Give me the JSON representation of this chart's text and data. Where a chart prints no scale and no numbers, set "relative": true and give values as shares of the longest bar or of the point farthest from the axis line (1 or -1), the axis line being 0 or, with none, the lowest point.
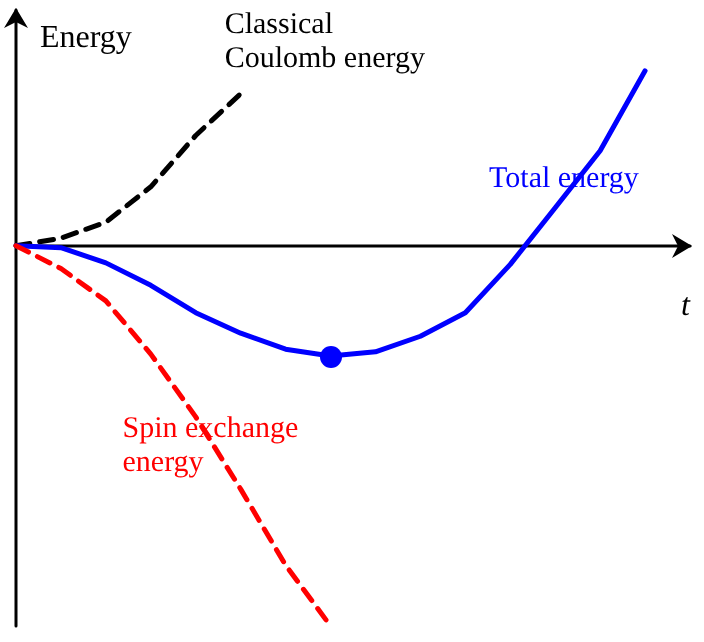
{
  "chart_data": {
    "type": "line",
    "relative": true,
    "ylabel": "Energy",
    "xlabel": "t",
    "marker": "none",
    "categories": [
      null,
      null,
      null,
      null,
      null,
      null,
      null,
      null,
      null,
      null,
      null,
      null,
      null,
      null,
      null,
      null
    ],
    "series": [
      {
        "name": "Classical Coulomb energy",
        "color": "#000000",
        "line_style": "dashed",
        "values": [
          0,
          0.02,
          0.062,
          0.155,
          0.29,
          0.4,
          null,
          null,
          null,
          null,
          null,
          null,
          null,
          null,
          null,
          null
        ]
      },
      {
        "name": "Total energy",
        "color": "#0000ff",
        "line_style": "solid",
        "values": [
          0,
          -0.005,
          -0.045,
          -0.104,
          -0.176,
          -0.23,
          -0.272,
          -0.29,
          -0.279,
          -0.238,
          -0.176,
          -0.049,
          0.1,
          0.25,
          0.46,
          null
        ]
      },
      {
        "name": "Spin exchange energy",
        "color": "#ff0000",
        "line_style": "dashed",
        "values": [
          0,
          -0.06,
          -0.145,
          -0.285,
          -0.45,
          -0.64,
          -0.84,
          -1,
          null,
          null,
          null,
          null,
          null,
          null,
          null,
          null
        ]
      }
    ]
  }
}
